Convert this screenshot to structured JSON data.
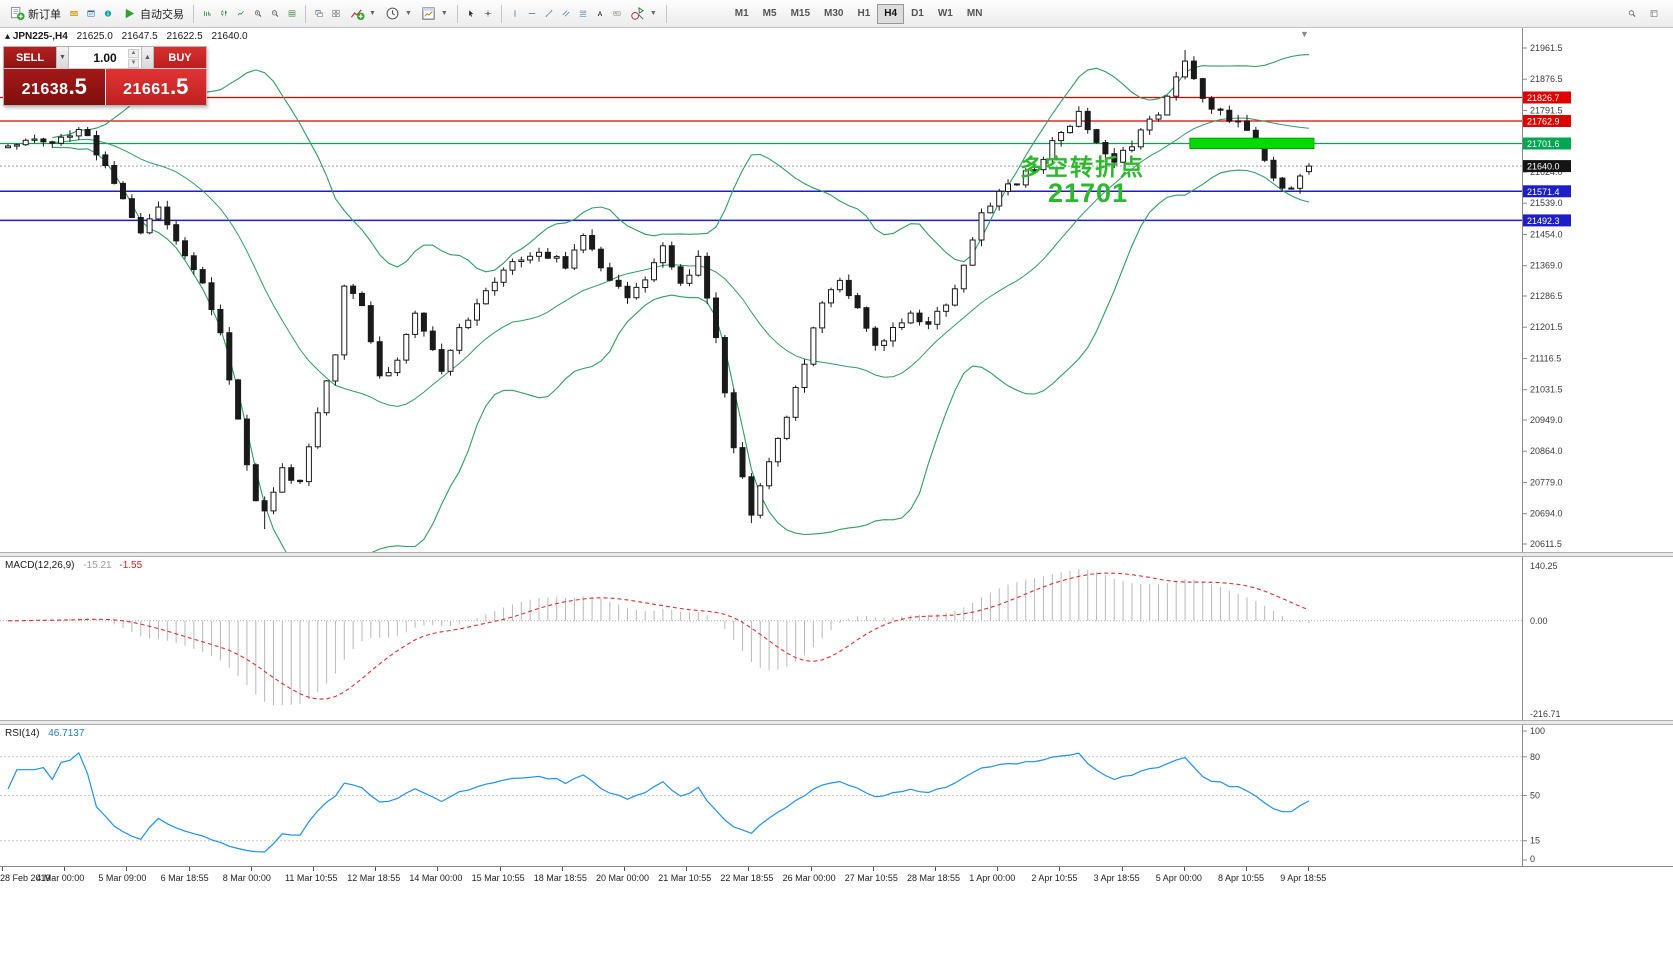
{
  "toolbar": {
    "new_order": "新订单",
    "autotrading": "自动交易",
    "timeframes": [
      "M1",
      "M5",
      "M15",
      "M30",
      "H1",
      "H4",
      "D1",
      "W1",
      "MN"
    ],
    "active_timeframe": "H4"
  },
  "chart": {
    "symbol_header": "JPN225-,H4",
    "collapse_arrow": "▴",
    "ohlc": {
      "open": "21625.0",
      "high": "21647.5",
      "low": "21622.5",
      "close": "21640.0"
    }
  },
  "oct": {
    "sell_label": "SELL",
    "buy_label": "BUY",
    "lot": "1.00",
    "sell_price_main": "21638",
    "sell_price_big": ".5",
    "buy_price_main": "21661",
    "buy_price_big": ".5"
  },
  "price_axis": {
    "ticks": [
      21961.5,
      21876.5,
      21791.5,
      21624.0,
      21539.0,
      21454.0,
      21369.0,
      21286.5,
      21201.5,
      21116.5,
      21031.5,
      20949.0,
      20864.0,
      20779.0,
      20694.0,
      20611.5
    ],
    "marked_labels": [
      {
        "text": "21826.7",
        "price": 21826.7,
        "bg": "#e00000",
        "fg": "#ffffff"
      },
      {
        "text": "21762.9",
        "price": 21762.9,
        "bg": "#e00000",
        "fg": "#ffffff"
      },
      {
        "text": "21701.6",
        "price": 21701.6,
        "bg": "#00a651",
        "fg": "#ffffff"
      },
      {
        "text": "21640.0",
        "price": 21640.0,
        "bg": "#141414",
        "fg": "#ffffff"
      },
      {
        "text": "21571.4",
        "price": 21571.4,
        "bg": "#1e1ec8",
        "fg": "#ffffff"
      },
      {
        "text": "21492.3",
        "price": 21492.3,
        "bg": "#1e1ec8",
        "fg": "#ffffff"
      }
    ]
  },
  "levels": [
    {
      "price": 21826.7,
      "color": "#e00000",
      "width": 1.2,
      "dash": ""
    },
    {
      "price": 21762.9,
      "color": "#e00000",
      "width": 1.2,
      "dash": ""
    },
    {
      "price": 21701.6,
      "color": "#00a651",
      "width": 1.2,
      "dash": ""
    },
    {
      "price": 21571.4,
      "color": "#1e1ec8",
      "width": 1.5,
      "dash": ""
    },
    {
      "price": 21492.3,
      "color": "#1e1ec8",
      "width": 1.5,
      "dash": ""
    },
    {
      "price": 21640.0,
      "color": "#9a9a9a",
      "width": 1,
      "dash": "2,2"
    }
  ],
  "annotation": {
    "line1": "多空转折点",
    "line2": "21701",
    "color": "#2eb82e",
    "rect_color": "#00dc00",
    "rect_price_top": 21716,
    "rect_price_bottom": 21688,
    "rect_bar_start": 134,
    "rect_bar_end": 147
  },
  "macd": {
    "name": "MACD(12,26,9)",
    "value_main": "-15.21",
    "value_signal": "-1.55",
    "axis": {
      "max": "140.25",
      "zero": "0.00",
      "min": "-216.71"
    },
    "histogram_color": "#b8b8b8",
    "signal_color": "#e03030"
  },
  "rsi": {
    "name": "RSI(14)",
    "value": "46.7137",
    "axis": [
      100,
      80,
      50,
      15,
      0
    ],
    "levels": [
      80,
      50,
      15
    ],
    "line_color": "#1e90ff"
  },
  "time_axis": [
    "28 Feb 2019",
    "4 Mar 00:00",
    "5 Mar 09:00",
    "6 Mar 18:55",
    "8 Mar 00:00",
    "11 Mar 10:55",
    "12 Mar 18:55",
    "14 Mar 00:00",
    "15 Mar 10:55",
    "18 Mar 18:55",
    "20 Mar 00:00",
    "21 Mar 10:55",
    "22 Mar 18:55",
    "26 Mar 00:00",
    "27 Mar 10:55",
    "28 Mar 18:55",
    "1 Apr 00:00",
    "2 Apr 10:55",
    "3 Apr 18:55",
    "5 Apr 00:00",
    "8 Apr 10:55",
    "9 Apr 18:55"
  ],
  "chart_data": {
    "type": "candlestick",
    "symbol": "JPN225-",
    "period": "H4",
    "price_top": 21961.5,
    "price_bottom": 20611.5,
    "bars": 148,
    "seed": 20190409,
    "last": {
      "open": 21625.0,
      "high": 21647.5,
      "low": 21622.5,
      "close": 21640.0
    },
    "bollinger": {
      "period": 20,
      "deviation": 2,
      "color": "#2f9e63"
    },
    "keypoints": [
      [
        0,
        21690
      ],
      [
        2,
        21720
      ],
      [
        5,
        21700
      ],
      [
        8,
        21745
      ],
      [
        11,
        21650
      ],
      [
        13,
        21540
      ],
      [
        15,
        21470
      ],
      [
        17,
        21530
      ],
      [
        19,
        21440
      ],
      [
        22,
        21320
      ],
      [
        24,
        21180
      ],
      [
        26,
        20940
      ],
      [
        28,
        20720
      ],
      [
        29,
        20690
      ],
      [
        31,
        20820
      ],
      [
        33,
        20770
      ],
      [
        35,
        20960
      ],
      [
        37,
        21130
      ],
      [
        38,
        21310
      ],
      [
        40,
        21270
      ],
      [
        42,
        21060
      ],
      [
        44,
        21120
      ],
      [
        46,
        21240
      ],
      [
        48,
        21150
      ],
      [
        49,
        21070
      ],
      [
        51,
        21190
      ],
      [
        54,
        21310
      ],
      [
        57,
        21380
      ],
      [
        60,
        21410
      ],
      [
        63,
        21370
      ],
      [
        65,
        21460
      ],
      [
        67,
        21360
      ],
      [
        70,
        21290
      ],
      [
        72,
        21340
      ],
      [
        74,
        21420
      ],
      [
        76,
        21310
      ],
      [
        78,
        21400
      ],
      [
        80,
        21180
      ],
      [
        82,
        20880
      ],
      [
        84,
        20690
      ],
      [
        86,
        20830
      ],
      [
        88,
        20960
      ],
      [
        90,
        21110
      ],
      [
        92,
        21270
      ],
      [
        94,
        21340
      ],
      [
        96,
        21250
      ],
      [
        98,
        21160
      ],
      [
        100,
        21190
      ],
      [
        102,
        21230
      ],
      [
        104,
        21210
      ],
      [
        106,
        21260
      ],
      [
        108,
        21360
      ],
      [
        110,
        21510
      ],
      [
        112,
        21570
      ],
      [
        114,
        21600
      ],
      [
        116,
        21640
      ],
      [
        118,
        21700
      ],
      [
        120,
        21750
      ],
      [
        121,
        21790
      ],
      [
        123,
        21700
      ],
      [
        125,
        21660
      ],
      [
        127,
        21700
      ],
      [
        129,
        21760
      ],
      [
        131,
        21820
      ],
      [
        133,
        21930
      ],
      [
        134,
        21870
      ],
      [
        136,
        21800
      ],
      [
        138,
        21770
      ],
      [
        140,
        21740
      ],
      [
        142,
        21650
      ],
      [
        144,
        21570
      ],
      [
        146,
        21610
      ],
      [
        147,
        21640
      ]
    ]
  }
}
